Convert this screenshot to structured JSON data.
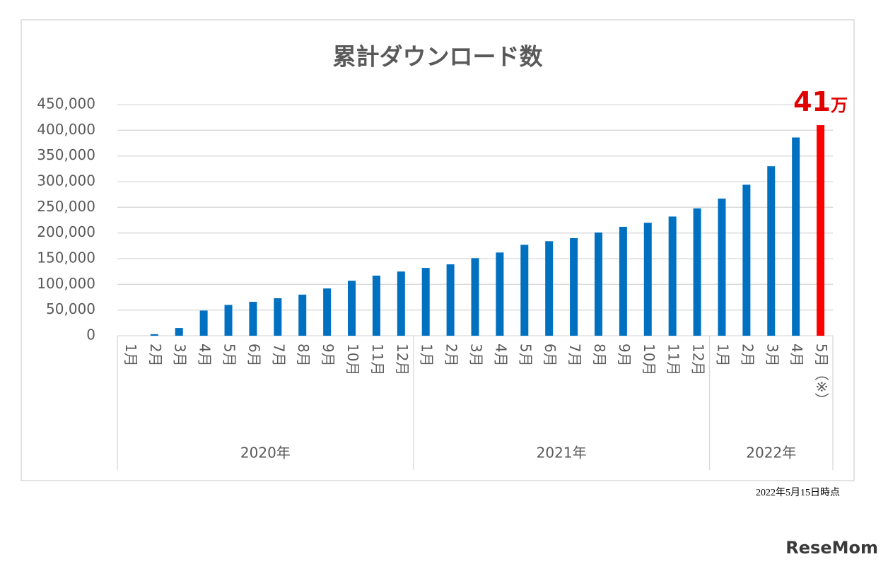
{
  "chart_data": {
    "type": "bar",
    "title": "累計ダウンロード数",
    "categories": [
      "1月",
      "2月",
      "3月",
      "4月",
      "5月",
      "6月",
      "7月",
      "8月",
      "9月",
      "10月",
      "11月",
      "12月",
      "1月",
      "2月",
      "3月",
      "4月",
      "5月",
      "6月",
      "7月",
      "8月",
      "9月",
      "10月",
      "11月",
      "12月",
      "1月",
      "2月",
      "3月",
      "4月",
      "5月（※）"
    ],
    "groups": [
      {
        "label": "2020年",
        "count": 12
      },
      {
        "label": "2021年",
        "count": 12
      },
      {
        "label": "2022年",
        "count": 5
      }
    ],
    "values": [
      0,
      3000,
      15000,
      49000,
      60000,
      66000,
      73000,
      80000,
      92000,
      107000,
      117000,
      125000,
      132000,
      139000,
      151000,
      162000,
      177000,
      184000,
      190000,
      201000,
      212000,
      220000,
      232000,
      248000,
      267000,
      294000,
      330000,
      386000,
      410000
    ],
    "colors": [
      "#0070c0",
      "#0070c0",
      "#0070c0",
      "#0070c0",
      "#0070c0",
      "#0070c0",
      "#0070c0",
      "#0070c0",
      "#0070c0",
      "#0070c0",
      "#0070c0",
      "#0070c0",
      "#0070c0",
      "#0070c0",
      "#0070c0",
      "#0070c0",
      "#0070c0",
      "#0070c0",
      "#0070c0",
      "#0070c0",
      "#0070c0",
      "#0070c0",
      "#0070c0",
      "#0070c0",
      "#0070c0",
      "#0070c0",
      "#0070c0",
      "#0070c0",
      "#ff0000"
    ],
    "ylim": [
      0,
      450000
    ],
    "yticks": [
      0,
      {
        "value": 50000,
        "label": "50,000"
      },
      {
        "value": 100000,
        "label": "100,000"
      },
      {
        "value": 150000,
        "label": "150,000"
      },
      {
        "value": 200000,
        "label": "200,000"
      },
      {
        "value": 250000,
        "label": "250,000"
      },
      {
        "value": 300000,
        "label": "300,000"
      },
      {
        "value": 350000,
        "label": "350,000"
      },
      {
        "value": 400000,
        "label": "400,000"
      },
      {
        "value": 450000,
        "label": "450,000"
      }
    ],
    "grid": true,
    "annotation": {
      "number": "41",
      "unit": "万"
    },
    "note": "2022年5月15日時点"
  },
  "watermark": "ReseMom"
}
